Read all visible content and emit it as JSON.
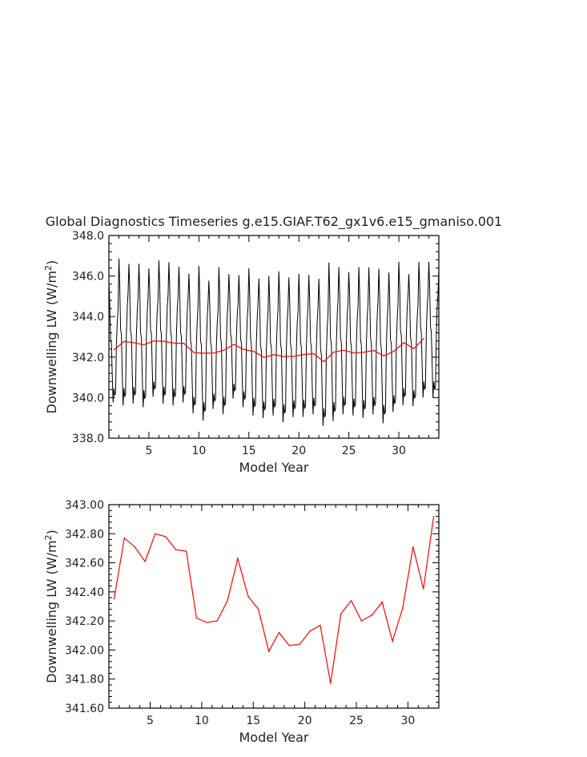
{
  "title": "Global Diagnostics Timeseries g.e15.GIAF.T62_gx1v6.e15_gmaniso.001",
  "colors": {
    "monthly": "#000000",
    "annual": "#ff0000",
    "axis": "#000000"
  },
  "chart_data": [
    {
      "type": "line",
      "xlabel": "Model Year",
      "ylabel_main": "Downwelling LW (W/m",
      "ylabel_sup": "2",
      "ylabel_end": ")",
      "xlim": [
        1,
        34
      ],
      "ylim": [
        338,
        348
      ],
      "xticks": [
        5,
        10,
        15,
        20,
        25,
        30
      ],
      "yticks": [
        338,
        340,
        342,
        344,
        346,
        348
      ],
      "ytick_labels": [
        "338.0",
        "340.0",
        "342.0",
        "344.0",
        "346.0",
        "348.0"
      ],
      "monthly_series": {
        "x_start": 1.0,
        "x_step": 0.08333,
        "amplitude": [
          3.2,
          3.9,
          3.7,
          3.8,
          3.4,
          3.8,
          3.8,
          3.6,
          3.7,
          4.1,
          3.4,
          3.9,
          3.3,
          3.5,
          3.9,
          3.7,
          3.7,
          4.0,
          3.7,
          3.8,
          3.7,
          3.9,
          4.2,
          3.9,
          3.8,
          4.0,
          3.9,
          4.1,
          3.7,
          3.8,
          3.5,
          3.6,
          3.6,
          3.2
        ]
      },
      "series": [
        {
          "x": [
            1.5,
            2.5,
            3.5,
            4.5,
            5.5,
            6.5,
            7.5,
            8.5,
            9.5,
            10.5,
            11.5,
            12.5,
            13.5,
            14.5,
            15.5,
            16.5,
            17.5,
            18.5,
            19.5,
            20.5,
            21.5,
            22.5,
            23.5,
            24.5,
            25.5,
            26.5,
            27.5,
            28.5,
            29.5,
            30.5,
            31.5,
            32.5
          ],
          "values": [
            342.35,
            342.77,
            342.71,
            342.61,
            342.8,
            342.78,
            342.69,
            342.68,
            342.22,
            342.19,
            342.2,
            342.34,
            342.63,
            342.37,
            342.28,
            341.99,
            342.12,
            342.03,
            342.04,
            342.13,
            342.17,
            341.77,
            342.25,
            342.34,
            342.2,
            342.24,
            342.33,
            342.06,
            342.29,
            342.71,
            342.42,
            342.92
          ]
        }
      ]
    },
    {
      "type": "line",
      "xlabel": "Model Year",
      "ylabel_main": "Downwelling LW (W/m",
      "ylabel_sup": "2",
      "ylabel_end": ")",
      "xlim": [
        1,
        33
      ],
      "ylim": [
        341.6,
        343.0
      ],
      "xticks": [
        5,
        10,
        15,
        20,
        25,
        30
      ],
      "yticks": [
        341.6,
        341.8,
        342.0,
        342.2,
        342.4,
        342.6,
        342.8,
        343.0
      ],
      "ytick_labels": [
        "341.60",
        "341.80",
        "342.00",
        "342.20",
        "342.40",
        "342.60",
        "342.80",
        "343.00"
      ],
      "series": [
        {
          "x": [
            1.5,
            2.5,
            3.5,
            4.5,
            5.5,
            6.5,
            7.5,
            8.5,
            9.5,
            10.5,
            11.5,
            12.5,
            13.5,
            14.5,
            15.5,
            16.5,
            17.5,
            18.5,
            19.5,
            20.5,
            21.5,
            22.5,
            23.5,
            24.5,
            25.5,
            26.5,
            27.5,
            28.5,
            29.5,
            30.5,
            31.5,
            32.5
          ],
          "values": [
            342.35,
            342.77,
            342.71,
            342.61,
            342.8,
            342.78,
            342.69,
            342.68,
            342.22,
            342.19,
            342.2,
            342.34,
            342.63,
            342.37,
            342.28,
            341.99,
            342.12,
            342.03,
            342.04,
            342.13,
            342.17,
            341.77,
            342.25,
            342.34,
            342.2,
            342.24,
            342.33,
            342.06,
            342.29,
            342.71,
            342.42,
            342.92
          ]
        }
      ]
    }
  ]
}
